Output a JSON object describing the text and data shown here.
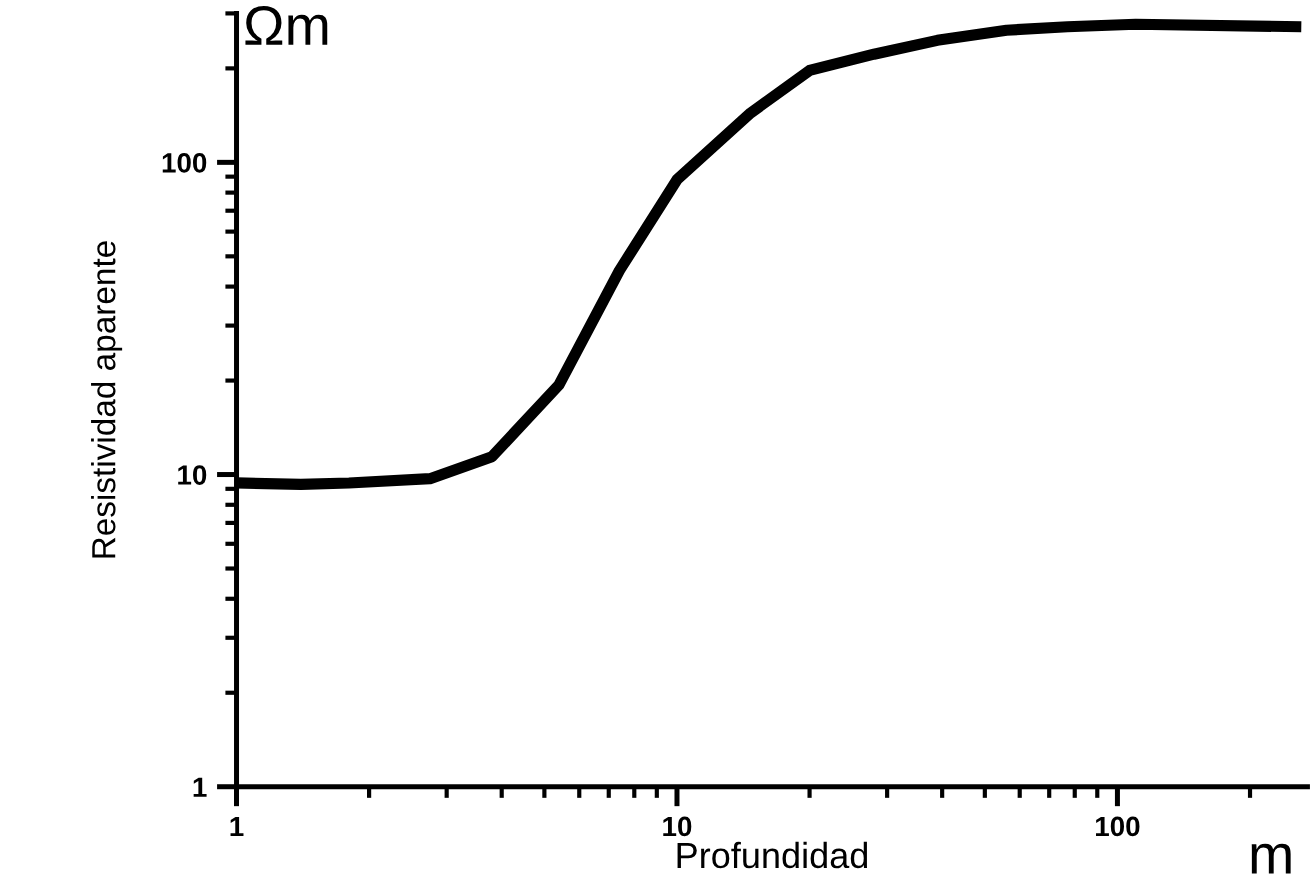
{
  "chart_data": {
    "type": "line",
    "xlabel": "Profundidad",
    "ylabel": "Resistividad aparente",
    "annotations": [
      "Ωm",
      "m"
    ],
    "log": "xy",
    "xlim": [
      1,
      270
    ],
    "ylim": [
      1,
      300
    ],
    "xticks": [
      1,
      10,
      100
    ],
    "yticks": [
      1,
      10,
      100
    ],
    "grid": false,
    "marker": "none",
    "line_style": "solid",
    "series": [
      {
        "color": "#000000",
        "x": [
          1,
          1.4,
          1.8,
          2.75,
          3.8,
          5.4,
          7.4,
          10,
          14.7,
          20,
          28,
          39,
          56,
          77,
          110,
          254
        ],
        "values": [
          9.4,
          9.3,
          9.4,
          9.7,
          11.4,
          19.4,
          45,
          88,
          144,
          197,
          222,
          246,
          265,
          272,
          277,
          272
        ]
      }
    ]
  }
}
